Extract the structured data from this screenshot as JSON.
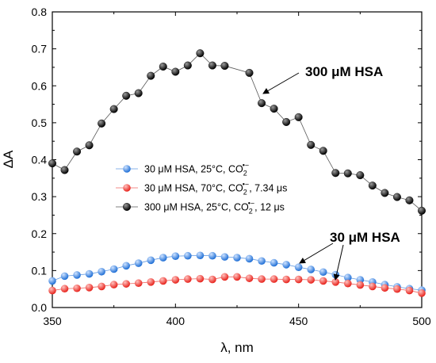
{
  "chart_data": {
    "type": "scatter",
    "xlabel": "λ, nm",
    "ylabel": "ΔA",
    "xlim": [
      350,
      500
    ],
    "ylim": [
      0.0,
      0.8
    ],
    "xticks": [
      350,
      400,
      450,
      500
    ],
    "yticks": [
      0.0,
      0.1,
      0.2,
      0.3,
      0.4,
      0.5,
      0.6,
      0.7,
      0.8
    ],
    "grid": false,
    "legend_position": "center-left",
    "series": [
      {
        "name": "30 μM HSA, 25°C, CO2•−",
        "legend_parts": {
          "before": "30 μM HSA, 25°C, CO",
          "sub": "2",
          "sup": "•−",
          "after": ""
        },
        "color": "#1f6fd6",
        "x": [
          350,
          355,
          360,
          365,
          370,
          375,
          380,
          385,
          390,
          395,
          400,
          405,
          410,
          415,
          420,
          425,
          430,
          435,
          440,
          445,
          450,
          455,
          460,
          465,
          470,
          475,
          480,
          485,
          490,
          495,
          500
        ],
        "y": [
          0.072,
          0.085,
          0.088,
          0.091,
          0.097,
          0.104,
          0.113,
          0.12,
          0.128,
          0.135,
          0.139,
          0.14,
          0.141,
          0.14,
          0.137,
          0.135,
          0.132,
          0.126,
          0.121,
          0.116,
          0.109,
          0.103,
          0.096,
          0.089,
          0.081,
          0.075,
          0.069,
          0.062,
          0.056,
          0.051,
          0.047
        ]
      },
      {
        "name": "30 μM HSA, 70°C, CO2•−, 7.34 μs",
        "legend_parts": {
          "before": "30 μM HSA, 70°C, CO",
          "sub": "2",
          "sup": "•−",
          "after": ", 7.34 μs"
        },
        "color": "#e8231c",
        "x": [
          350,
          355,
          360,
          365,
          370,
          375,
          380,
          385,
          390,
          395,
          400,
          405,
          410,
          415,
          420,
          425,
          430,
          435,
          440,
          445,
          450,
          455,
          460,
          465,
          470,
          475,
          480,
          485,
          490,
          495,
          500
        ],
        "y": [
          0.046,
          0.051,
          0.052,
          0.054,
          0.057,
          0.062,
          0.064,
          0.066,
          0.069,
          0.072,
          0.075,
          0.077,
          0.078,
          0.076,
          0.083,
          0.083,
          0.079,
          0.077,
          0.077,
          0.076,
          0.076,
          0.075,
          0.072,
          0.069,
          0.065,
          0.061,
          0.057,
          0.053,
          0.05,
          0.046,
          0.039
        ]
      },
      {
        "name": "300 μM HSA, 25°C, CO2•−, 12 μs",
        "legend_parts": {
          "before": "300 μM HSA, 25°C, CO",
          "sub": "2",
          "sup": "•−",
          "after": ", 12 μs"
        },
        "color": "#111111",
        "x": [
          350,
          355,
          360,
          365,
          370,
          375,
          380,
          385,
          390,
          395,
          400,
          405,
          410,
          415,
          420,
          430,
          435,
          440,
          445,
          450,
          455,
          460,
          465,
          470,
          475,
          480,
          485,
          490,
          495,
          500
        ],
        "y": [
          0.39,
          0.372,
          0.422,
          0.439,
          0.498,
          0.537,
          0.573,
          0.58,
          0.627,
          0.652,
          0.638,
          0.655,
          0.688,
          0.655,
          0.654,
          0.635,
          0.553,
          0.538,
          0.502,
          0.515,
          0.44,
          0.424,
          0.364,
          0.363,
          0.358,
          0.33,
          0.31,
          0.299,
          0.29,
          0.262
        ]
      }
    ],
    "annotations": [
      {
        "text": "300 μM HSA"
      },
      {
        "text": "30 μM HSA"
      }
    ]
  }
}
